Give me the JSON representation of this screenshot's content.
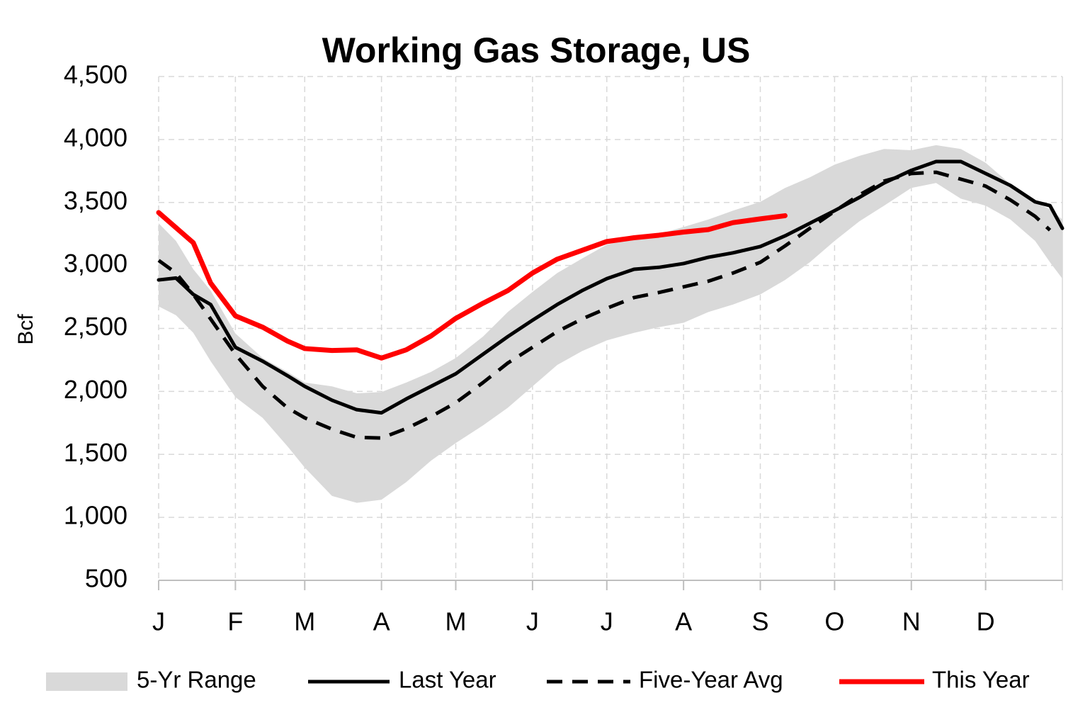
{
  "chart_data": {
    "type": "line",
    "title": "Working Gas Storage, US",
    "y_label": "Bcf",
    "x": [
      0,
      7,
      14,
      21,
      31,
      42,
      52,
      59,
      70,
      80,
      90,
      100,
      110,
      120,
      131,
      141,
      151,
      161,
      171,
      181,
      192,
      202,
      212,
      222,
      232,
      243,
      253,
      263,
      273,
      283,
      293,
      304,
      314,
      324,
      334,
      344,
      354,
      360,
      365
    ],
    "xlim": [
      0,
      365
    ],
    "xticks": [
      {
        "value": 0,
        "label": "J"
      },
      {
        "value": 31,
        "label": "F"
      },
      {
        "value": 59,
        "label": "M"
      },
      {
        "value": 90,
        "label": "A"
      },
      {
        "value": 120,
        "label": "M"
      },
      {
        "value": 151,
        "label": "J"
      },
      {
        "value": 181,
        "label": "J"
      },
      {
        "value": 212,
        "label": "A"
      },
      {
        "value": 243,
        "label": "S"
      },
      {
        "value": 273,
        "label": "O"
      },
      {
        "value": 304,
        "label": "N"
      },
      {
        "value": 334,
        "label": "D"
      }
    ],
    "ylim": [
      500,
      4500
    ],
    "yticks": [
      {
        "value": 500,
        "label": "500"
      },
      {
        "value": 1000,
        "label": "1,000"
      },
      {
        "value": 1500,
        "label": "1,500"
      },
      {
        "value": 2000,
        "label": "2,000"
      },
      {
        "value": 2500,
        "label": "2,500"
      },
      {
        "value": 3000,
        "label": "3,000"
      },
      {
        "value": 3500,
        "label": "3,500"
      },
      {
        "value": 4000,
        "label": "4,000"
      },
      {
        "value": 4500,
        "label": "4,500"
      }
    ],
    "grid": true,
    "legend": "bottom",
    "band": {
      "name": "5-Yr Range",
      "color": "#d9d9d9",
      "high": [
        3335,
        3195,
        2970,
        2800,
        2460,
        2265,
        2155,
        2070,
        2040,
        1985,
        1995,
        2070,
        2155,
        2265,
        2435,
        2630,
        2790,
        2940,
        3055,
        3165,
        3210,
        3250,
        3305,
        3365,
        3435,
        3505,
        3615,
        3700,
        3800,
        3870,
        3925,
        3915,
        3955,
        3925,
        3815,
        3645,
        3505,
        3445,
        3365
      ],
      "low": [
        2675,
        2605,
        2465,
        2240,
        1955,
        1790,
        1565,
        1395,
        1170,
        1115,
        1140,
        1280,
        1450,
        1590,
        1730,
        1870,
        2040,
        2210,
        2320,
        2405,
        2465,
        2510,
        2545,
        2630,
        2690,
        2770,
        2885,
        3025,
        3195,
        3350,
        3475,
        3615,
        3655,
        3530,
        3475,
        3365,
        3195,
        3025,
        2895
      ]
    },
    "series": [
      {
        "name": "Last Year",
        "color": "#000000",
        "style": "solid",
        "values": [
          2885,
          2900,
          2770,
          2690,
          2350,
          2240,
          2125,
          2040,
          1930,
          1855,
          1830,
          1940,
          2040,
          2140,
          2295,
          2435,
          2565,
          2690,
          2800,
          2895,
          2970,
          2985,
          3015,
          3065,
          3100,
          3150,
          3235,
          3335,
          3435,
          3540,
          3655,
          3755,
          3825,
          3825,
          3730,
          3635,
          3505,
          3475,
          3295
        ]
      },
      {
        "name": "Five-Year Avg",
        "color": "#000000",
        "style": "dashed",
        "values": [
          3040,
          2940,
          2770,
          2575,
          2295,
          2040,
          1870,
          1790,
          1700,
          1635,
          1630,
          1705,
          1800,
          1910,
          2070,
          2225,
          2350,
          2475,
          2575,
          2660,
          2745,
          2785,
          2830,
          2875,
          2940,
          3025,
          3155,
          3295,
          3430,
          3560,
          3670,
          3730,
          3740,
          3685,
          3630,
          3520,
          3390,
          3280,
          null
        ]
      },
      {
        "name": "This Year",
        "color": "#ff0000",
        "style": "solid",
        "values": [
          3420,
          3300,
          3180,
          2860,
          2600,
          2510,
          2400,
          2340,
          2325,
          2330,
          2265,
          2330,
          2440,
          2580,
          2700,
          2800,
          2940,
          3050,
          3120,
          3190,
          3220,
          3240,
          3265,
          3285,
          3340,
          3370,
          3395,
          null,
          null,
          null,
          null,
          null,
          null,
          null,
          null,
          null,
          null,
          null,
          null
        ]
      }
    ]
  }
}
